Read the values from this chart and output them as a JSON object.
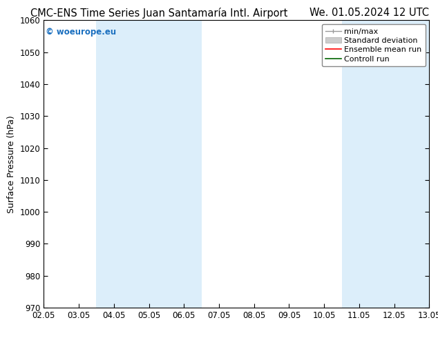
{
  "title_left": "CMC-ENS Time Series Juan Santamaría Intl. Airport",
  "title_right": "We. 01.05.2024 12 UTC",
  "ylabel": "Surface Pressure (hPa)",
  "watermark": "© woeurope.eu",
  "xlim_dates": [
    "02.05",
    "03.05",
    "04.05",
    "05.05",
    "06.05",
    "07.05",
    "08.05",
    "09.05",
    "10.05",
    "11.05",
    "12.05",
    "13.05"
  ],
  "ylim": [
    970,
    1060
  ],
  "yticks": [
    970,
    980,
    990,
    1000,
    1010,
    1020,
    1030,
    1040,
    1050,
    1060
  ],
  "shade_color": "#dceefa",
  "background_color": "#ffffff",
  "watermark_color": "#1a6fbf",
  "title_fontsize": 10.5,
  "axis_label_fontsize": 9,
  "tick_fontsize": 8.5,
  "legend_fontsize": 8
}
